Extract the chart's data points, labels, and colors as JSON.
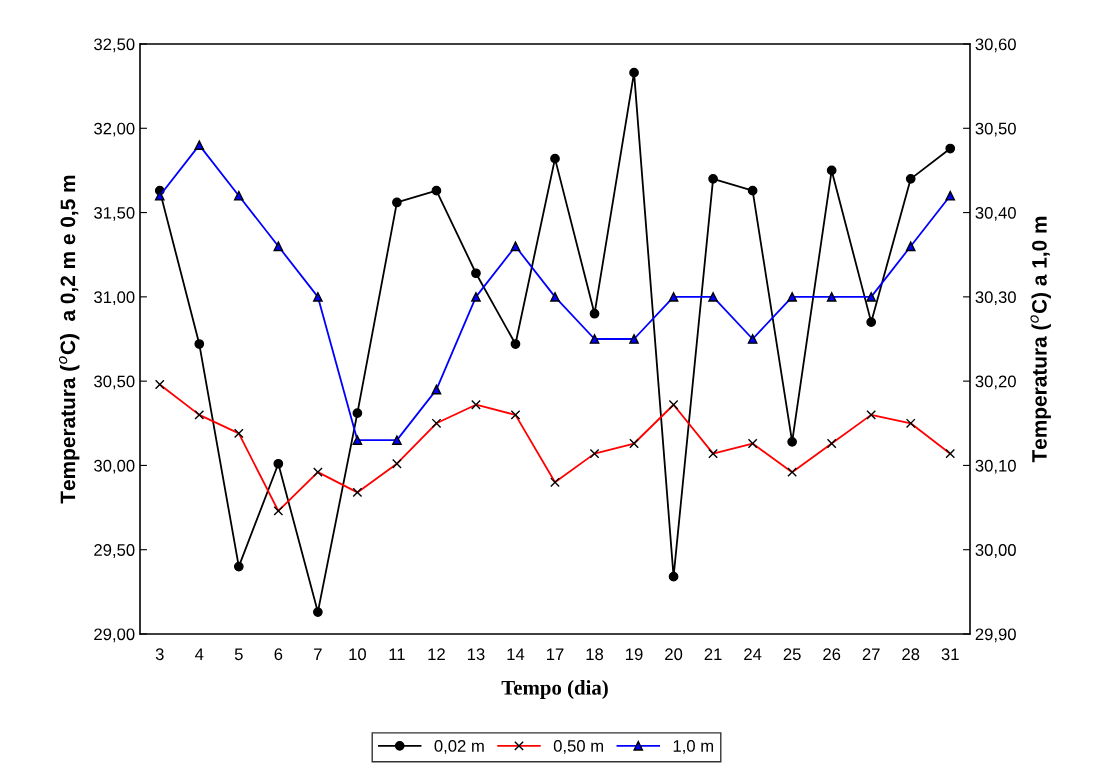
{
  "chart_data": {
    "type": "line",
    "xlabel": "Tempo (dia)",
    "ylabel": "Temperatura ($^{o}$C)  a 0,2 m e 0,5 m",
    "y2label": "Temperatura ($^{o}$C) a 1,0 m",
    "categories": [
      "3",
      "4",
      "5",
      "6",
      "7",
      "10",
      "11",
      "12",
      "13",
      "14",
      "17",
      "18",
      "19",
      "20",
      "21",
      "24",
      "25",
      "26",
      "27",
      "28",
      "31"
    ],
    "series": [
      {
        "name": "0,02 m",
        "color": "#000000",
        "marker": "circle",
        "values": [
          31.63,
          30.72,
          29.4,
          30.01,
          29.13,
          30.31,
          31.56,
          31.63,
          31.14,
          30.72,
          31.82,
          30.9,
          32.33,
          29.34,
          31.7,
          31.63,
          30.14,
          31.75,
          30.85,
          31.7,
          31.88
        ]
      },
      {
        "name": "0,50 m",
        "color": "#ff0000",
        "marker": "cross",
        "values": [
          30.48,
          30.3,
          30.19,
          29.73,
          29.96,
          29.84,
          30.01,
          30.25,
          30.36,
          30.3,
          29.9,
          30.07,
          30.13,
          30.36,
          30.07,
          30.13,
          29.96,
          30.13,
          30.3,
          30.25,
          30.07
        ]
      },
      {
        "name": "1,0 m",
        "color": "#0000ff",
        "marker": "triangle",
        "axis": "y2",
        "values": [
          30.42,
          30.48,
          30.42,
          30.36,
          30.3,
          30.13,
          30.13,
          30.19,
          30.3,
          30.36,
          30.3,
          30.25,
          30.25,
          30.3,
          30.3,
          30.25,
          30.3,
          30.3,
          30.3,
          30.36,
          30.42
        ]
      }
    ],
    "ylim": [
      29.0,
      32.5
    ],
    "yticks": [
      {
        "value": 29.0,
        "label": "29,00"
      },
      {
        "value": 29.5,
        "label": "29,50"
      },
      {
        "value": 30.0,
        "label": "30,00"
      },
      {
        "value": 30.5,
        "label": "30,50"
      },
      {
        "value": 31.0,
        "label": "31,00"
      },
      {
        "value": 31.5,
        "label": "31,50"
      },
      {
        "value": 32.0,
        "label": "32,00"
      },
      {
        "value": 32.5,
        "label": "32,50"
      }
    ],
    "y2lim": [
      29.9,
      30.6
    ],
    "y2ticks": [
      {
        "value": 29.9,
        "label": "29,90"
      },
      {
        "value": 30.0,
        "label": "30,00"
      },
      {
        "value": 30.1,
        "label": "30,10"
      },
      {
        "value": 30.2,
        "label": "30,20"
      },
      {
        "value": 30.3,
        "label": "30,30"
      },
      {
        "value": 30.4,
        "label": "30,40"
      },
      {
        "value": 30.5,
        "label": "30,50"
      },
      {
        "value": 30.6,
        "label": "30,60"
      }
    ],
    "legend": "bottom",
    "grid": false,
    "line_style": "solid"
  }
}
